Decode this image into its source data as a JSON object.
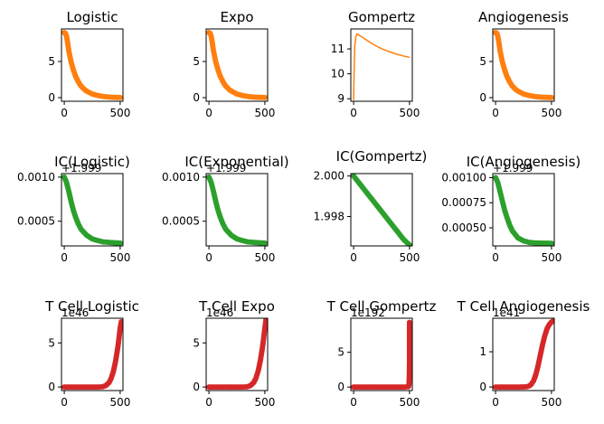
{
  "figure": {
    "colors": {
      "orange": "#ff7f0e",
      "green": "#2ca02c",
      "red": "#d62728",
      "axis": "#000000"
    }
  },
  "chart_data": [
    {
      "type": "line",
      "title": "Logistic",
      "marker": "circle",
      "color": "#ff7f0e",
      "xlim": [
        -25,
        525
      ],
      "ylim": [
        -0.5,
        9.5
      ],
      "xticks": [
        0,
        500
      ],
      "yticks": [
        0,
        5
      ],
      "offset_label": "",
      "x": [
        0,
        10,
        20,
        30,
        40,
        60,
        80,
        100,
        125,
        150,
        175,
        200,
        250,
        300,
        350,
        400,
        450,
        500
      ],
      "y": [
        9,
        8.9,
        8.5,
        7.6,
        6.5,
        5.0,
        3.9,
        3.0,
        2.2,
        1.6,
        1.2,
        0.9,
        0.5,
        0.3,
        0.15,
        0.08,
        0.04,
        0.02
      ]
    },
    {
      "type": "line",
      "title": "Expo",
      "marker": "circle",
      "color": "#ff7f0e",
      "xlim": [
        -25,
        525
      ],
      "ylim": [
        -0.5,
        9.5
      ],
      "xticks": [
        0,
        500
      ],
      "yticks": [
        0,
        5
      ],
      "offset_label": "",
      "x": [
        0,
        10,
        20,
        30,
        40,
        60,
        80,
        100,
        125,
        150,
        175,
        200,
        250,
        300,
        350,
        400,
        450,
        500
      ],
      "y": [
        9,
        8.9,
        8.5,
        7.6,
        6.5,
        5.0,
        3.9,
        3.0,
        2.2,
        1.6,
        1.2,
        0.9,
        0.5,
        0.3,
        0.15,
        0.08,
        0.04,
        0.02
      ]
    },
    {
      "type": "line",
      "title": "Gompertz",
      "marker": "none",
      "color": "#ff7f0e",
      "xlim": [
        -25,
        525
      ],
      "ylim": [
        8.9,
        11.8
      ],
      "xticks": [
        0,
        500
      ],
      "yticks": [
        9,
        10,
        11
      ],
      "offset_label": "",
      "x": [
        0,
        5,
        10,
        20,
        30,
        50,
        100,
        150,
        200,
        250,
        300,
        350,
        400,
        450,
        500
      ],
      "y": [
        8.95,
        10.2,
        11.1,
        11.5,
        11.6,
        11.55,
        11.4,
        11.25,
        11.12,
        11.01,
        10.92,
        10.84,
        10.77,
        10.71,
        10.66
      ]
    },
    {
      "type": "line",
      "title": "Angiogenesis",
      "marker": "circle",
      "color": "#ff7f0e",
      "xlim": [
        -25,
        525
      ],
      "ylim": [
        -0.5,
        9.5
      ],
      "xticks": [
        0,
        500
      ],
      "yticks": [
        0,
        5
      ],
      "offset_label": "",
      "x": [
        0,
        10,
        20,
        30,
        40,
        60,
        80,
        100,
        125,
        150,
        175,
        200,
        250,
        300,
        350,
        400,
        450,
        500
      ],
      "y": [
        9,
        8.9,
        8.5,
        7.6,
        6.5,
        5.0,
        3.9,
        3.0,
        2.2,
        1.6,
        1.2,
        0.9,
        0.5,
        0.3,
        0.15,
        0.08,
        0.04,
        0.02
      ]
    },
    {
      "type": "line",
      "title": "IC(Logistic)",
      "marker": "circle",
      "color": "#2ca02c",
      "xlim": [
        -25,
        525
      ],
      "ylim": [
        0.00022,
        0.00104
      ],
      "xticks": [
        0,
        500
      ],
      "yticks": [
        0.0005,
        0.001
      ],
      "ytick_labels": [
        "0.0005",
        "0.0010"
      ],
      "offset_label": "+1.999",
      "x": [
        0,
        20,
        40,
        60,
        80,
        100,
        125,
        150,
        200,
        250,
        300,
        350,
        400,
        450,
        500
      ],
      "y": [
        0.001,
        0.00094,
        0.00084,
        0.00073,
        0.00063,
        0.00055,
        0.00047,
        0.00041,
        0.00034,
        0.0003,
        0.00028,
        0.000265,
        0.00026,
        0.000255,
        0.000252
      ]
    },
    {
      "type": "line",
      "title": "IC(Exponential)",
      "marker": "circle",
      "color": "#2ca02c",
      "xlim": [
        -25,
        525
      ],
      "ylim": [
        0.00022,
        0.00104
      ],
      "xticks": [
        0,
        500
      ],
      "yticks": [
        0.0005,
        0.001
      ],
      "ytick_labels": [
        "0.0005",
        "0.0010"
      ],
      "offset_label": "+1.999",
      "x": [
        0,
        20,
        40,
        60,
        80,
        100,
        125,
        150,
        200,
        250,
        300,
        350,
        400,
        450,
        500
      ],
      "y": [
        0.001,
        0.00094,
        0.00084,
        0.00073,
        0.00063,
        0.00055,
        0.00047,
        0.00041,
        0.00034,
        0.0003,
        0.00028,
        0.000265,
        0.00026,
        0.000255,
        0.000252
      ]
    },
    {
      "type": "line",
      "title": "IC(Gompertz)",
      "marker": "circle",
      "color": "#2ca02c",
      "xlim": [
        -25,
        525
      ],
      "ylim": [
        1.99655,
        2.00012
      ],
      "xticks": [
        0,
        500
      ],
      "yticks": [
        1.998,
        2.0
      ],
      "ytick_labels": [
        "1.998",
        "2.000"
      ],
      "offset_label": "",
      "x": [
        0,
        50,
        100,
        150,
        200,
        250,
        300,
        350,
        400,
        450,
        500
      ],
      "y": [
        2.0,
        1.99965,
        1.9993,
        1.99895,
        1.9986,
        1.99825,
        1.9979,
        1.99755,
        1.9972,
        1.99685,
        1.9966
      ]
    },
    {
      "type": "line",
      "title": "IC(Angiogenesis)",
      "marker": "circle",
      "color": "#2ca02c",
      "xlim": [
        -25,
        525
      ],
      "ylim": [
        0.00032,
        0.00104
      ],
      "xticks": [
        0,
        500
      ],
      "yticks": [
        0.0005,
        0.00075,
        0.001
      ],
      "ytick_labels": [
        "0.00050",
        "0.00075",
        "0.00100"
      ],
      "offset_label": "+1.999",
      "x": [
        0,
        20,
        40,
        60,
        80,
        100,
        125,
        150,
        200,
        250,
        300,
        350,
        400,
        450,
        500
      ],
      "y": [
        0.001,
        0.00095,
        0.00086,
        0.00077,
        0.00068,
        0.00061,
        0.00053,
        0.00047,
        0.0004,
        0.00037,
        0.000355,
        0.00035,
        0.000348,
        0.000347,
        0.000346
      ]
    },
    {
      "type": "line",
      "title": "T Cell Logistic",
      "marker": "circle",
      "color": "#d62728",
      "xlim": [
        -25,
        525
      ],
      "ylim": [
        -0.4,
        7.8
      ],
      "xticks": [
        0,
        500
      ],
      "yticks": [
        0,
        5
      ],
      "offset_label": "1e46",
      "x": [
        0,
        50,
        100,
        150,
        200,
        250,
        300,
        340,
        370,
        400,
        420,
        440,
        460,
        480,
        490,
        500,
        510
      ],
      "y": [
        0,
        0,
        0,
        0,
        0,
        0,
        0,
        0.02,
        0.15,
        0.5,
        1.0,
        1.8,
        3.0,
        4.6,
        5.6,
        6.7,
        7.4
      ]
    },
    {
      "type": "line",
      "title": "T Cell Expo",
      "marker": "circle",
      "color": "#d62728",
      "xlim": [
        -25,
        525
      ],
      "ylim": [
        -0.4,
        7.8
      ],
      "xticks": [
        0,
        500
      ],
      "yticks": [
        0,
        5
      ],
      "offset_label": "1e46",
      "x": [
        0,
        50,
        100,
        150,
        200,
        250,
        300,
        340,
        370,
        400,
        420,
        440,
        460,
        480,
        490,
        500,
        510
      ],
      "y": [
        0,
        0,
        0,
        0,
        0,
        0,
        0,
        0.02,
        0.15,
        0.5,
        1.0,
        1.8,
        3.0,
        4.6,
        5.6,
        6.7,
        7.6
      ]
    },
    {
      "type": "line",
      "title": "T Cell Gompertz",
      "marker": "circle",
      "color": "#d62728",
      "xlim": [
        -25,
        525
      ],
      "ylim": [
        -0.5,
        9.9
      ],
      "xticks": [
        0,
        500
      ],
      "yticks": [
        0,
        5
      ],
      "offset_label": "1e192",
      "x": [
        0,
        50,
        100,
        150,
        200,
        250,
        300,
        350,
        400,
        450,
        490,
        495,
        498,
        500,
        500
      ],
      "y": [
        0,
        0,
        0,
        0,
        0,
        0,
        0,
        0,
        0,
        0,
        0.05,
        0.3,
        1.5,
        3.6,
        9.3
      ]
    },
    {
      "type": "line",
      "title": "T Cell Angiogenesis",
      "marker": "circle",
      "color": "#d62728",
      "xlim": [
        -25,
        525
      ],
      "ylim": [
        -0.1,
        1.95
      ],
      "xticks": [
        0,
        500
      ],
      "yticks": [
        0,
        1
      ],
      "offset_label": "1e41",
      "x": [
        0,
        50,
        100,
        150,
        200,
        250,
        280,
        300,
        320,
        340,
        360,
        380,
        400,
        420,
        440,
        460,
        480,
        500,
        510
      ],
      "y": [
        0,
        0,
        0,
        0,
        0,
        0.002,
        0.01,
        0.03,
        0.08,
        0.18,
        0.35,
        0.6,
        0.9,
        1.2,
        1.45,
        1.65,
        1.77,
        1.84,
        1.86
      ]
    }
  ]
}
